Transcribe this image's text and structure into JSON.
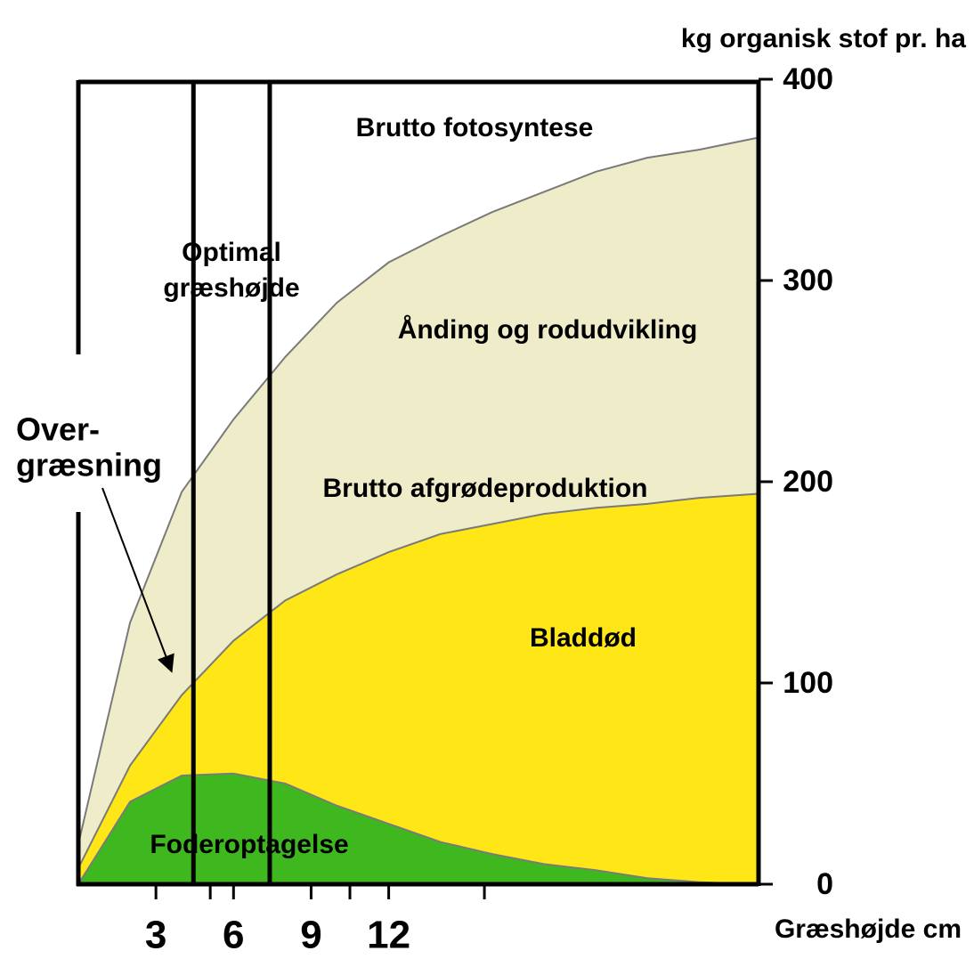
{
  "chart_data": {
    "type": "area",
    "y_axis_title": "kg organisk stof pr. ha",
    "x_axis_title": "Græshøjde cm",
    "x": [
      0,
      2,
      4,
      6,
      8,
      10,
      12,
      14,
      16,
      18,
      20,
      22,
      24,
      26.3
    ],
    "series": [
      {
        "name": "Brutto fotosyntese",
        "color": "#efedc9",
        "values": [
          20,
          130,
          195,
          231,
          262,
          289,
          309,
          322,
          334,
          344,
          354,
          361,
          365,
          371
        ]
      },
      {
        "name": "Brutto afgrødeproduktion",
        "color": "#ffe617",
        "values": [
          8,
          59,
          94,
          121,
          141,
          154,
          165,
          174,
          179,
          184,
          187,
          189,
          192,
          194
        ]
      },
      {
        "name": "Foderoptagelse",
        "color": "#3fb820",
        "values": [
          0,
          41,
          54,
          55,
          50,
          39,
          30,
          21,
          15,
          10,
          7,
          3,
          1,
          0
        ]
      }
    ],
    "annotations": {
      "respiration": "Ånding og rodudvikling",
      "leaf_death": "Bladdød",
      "optimal": [
        "Optimal",
        "græshøjde"
      ],
      "overgrazing": [
        "Over-",
        "græsning"
      ]
    },
    "optimal_range": [
      4.45,
      7.4
    ],
    "xlim": [
      0,
      26.3
    ],
    "xticks": [
      3,
      6,
      9,
      12
    ],
    "xticks_minor": [
      5.1,
      10.5,
      15.7
    ],
    "ylim": [
      0,
      400
    ],
    "yticks": [
      0,
      100,
      200,
      300,
      400
    ]
  }
}
